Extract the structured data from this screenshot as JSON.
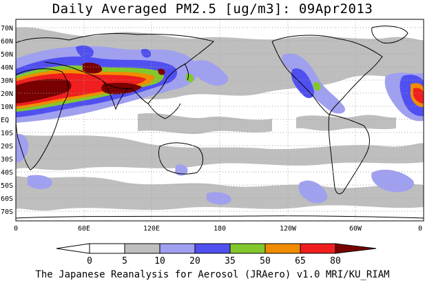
{
  "title": "Daily Averaged PM2.5 [ug/m3]: 09Apr2013",
  "footer": "The Japanese Reanalysis for Aerosol (JRAero) v1.0 MRI/KU_RIAM",
  "map": {
    "lat_labels": [
      "70N",
      "60N",
      "50N",
      "40N",
      "30N",
      "20N",
      "10N",
      "EQ",
      "10S",
      "20S",
      "30S",
      "40S",
      "50S",
      "60S",
      "70S"
    ],
    "lon_labels": [
      "0",
      "60E",
      "120E",
      "180",
      "120W",
      "60W",
      "0"
    ],
    "gridlines": true
  },
  "colorbar": {
    "levels": [
      "0",
      "5",
      "10",
      "20",
      "35",
      "50",
      "65",
      "80"
    ],
    "colors": [
      "#ffffff",
      "#bebebe",
      "#a0a0f0",
      "#5050f0",
      "#82c82d",
      "#f08c00",
      "#f01e1e",
      "#780000"
    ]
  },
  "palette": {
    "land_line": "#000000",
    "grid": "#a0a0a0"
  }
}
